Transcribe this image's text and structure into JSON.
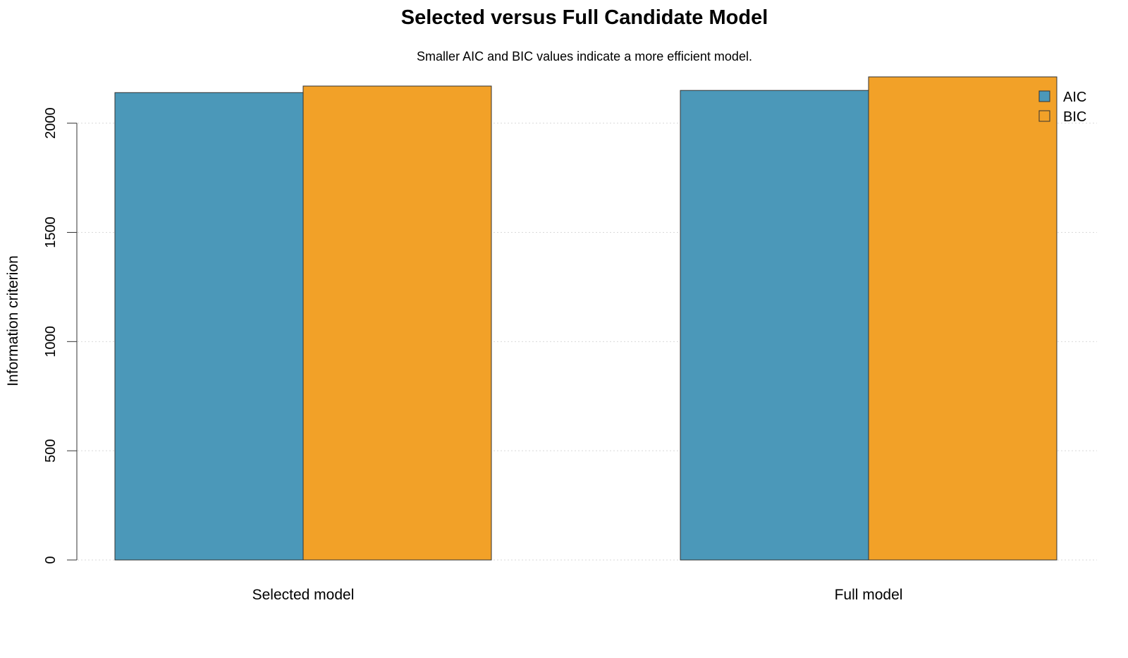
{
  "chart_data": {
    "type": "bar",
    "title": "Selected versus Full Candidate Model",
    "subtitle": "Smaller AIC and BIC values indicate a more efficient model.",
    "xlabel": "",
    "ylabel": "Information criterion",
    "categories": [
      "Selected model",
      "Full model"
    ],
    "series": [
      {
        "name": "AIC",
        "color": "#4b98b9",
        "values": [
          2140,
          2150
        ]
      },
      {
        "name": "BIC",
        "color": "#f2a128",
        "values": [
          2170,
          2212
        ]
      }
    ],
    "ylim": [
      0,
      2212
    ],
    "yticks": [
      0,
      500,
      1000,
      1500,
      2000
    ],
    "ytick_labels": [
      "0",
      "500",
      "1000",
      "1500",
      "2000"
    ],
    "grid": "horizontal dotted",
    "legend": {
      "position": "top-right",
      "entries": [
        "AIC",
        "BIC"
      ]
    }
  }
}
